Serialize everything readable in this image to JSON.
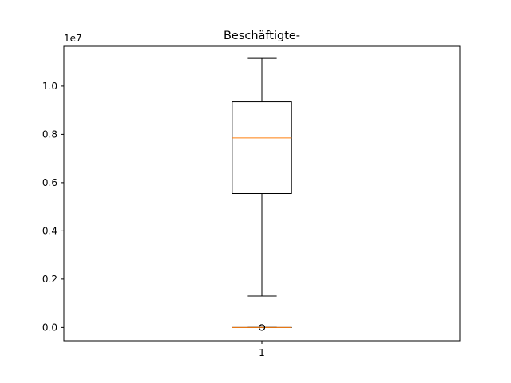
{
  "chart_data": {
    "type": "box",
    "title": "Beschäftigte-",
    "offset_label": "1e7",
    "ylim": [
      -0.055,
      1.165
    ],
    "yticks": [
      0.0,
      0.2,
      0.4,
      0.6,
      0.8,
      1.0
    ],
    "ytick_labels": [
      "0.0",
      "0.2",
      "0.4",
      "0.6",
      "0.8",
      "1.0"
    ],
    "xticks": [
      1
    ],
    "xtick_labels": [
      "1"
    ],
    "xlim": [
      0.5,
      1.5
    ],
    "grid": false,
    "series": [
      {
        "position": 1,
        "whisker_low": 0.13,
        "q1": 0.555,
        "median": 0.785,
        "q3": 0.935,
        "whisker_high": 1.115
      },
      {
        "position": 1,
        "whisker_low": 0.0,
        "q1": 0.0,
        "median": 0.0,
        "q3": 0.0,
        "whisker_high": 0.0,
        "outliers": [
          0.0,
          0.0,
          0.0
        ]
      }
    ],
    "colors": {
      "box": "#000000",
      "median": "#ff7f0e",
      "axes": "#000000"
    }
  }
}
